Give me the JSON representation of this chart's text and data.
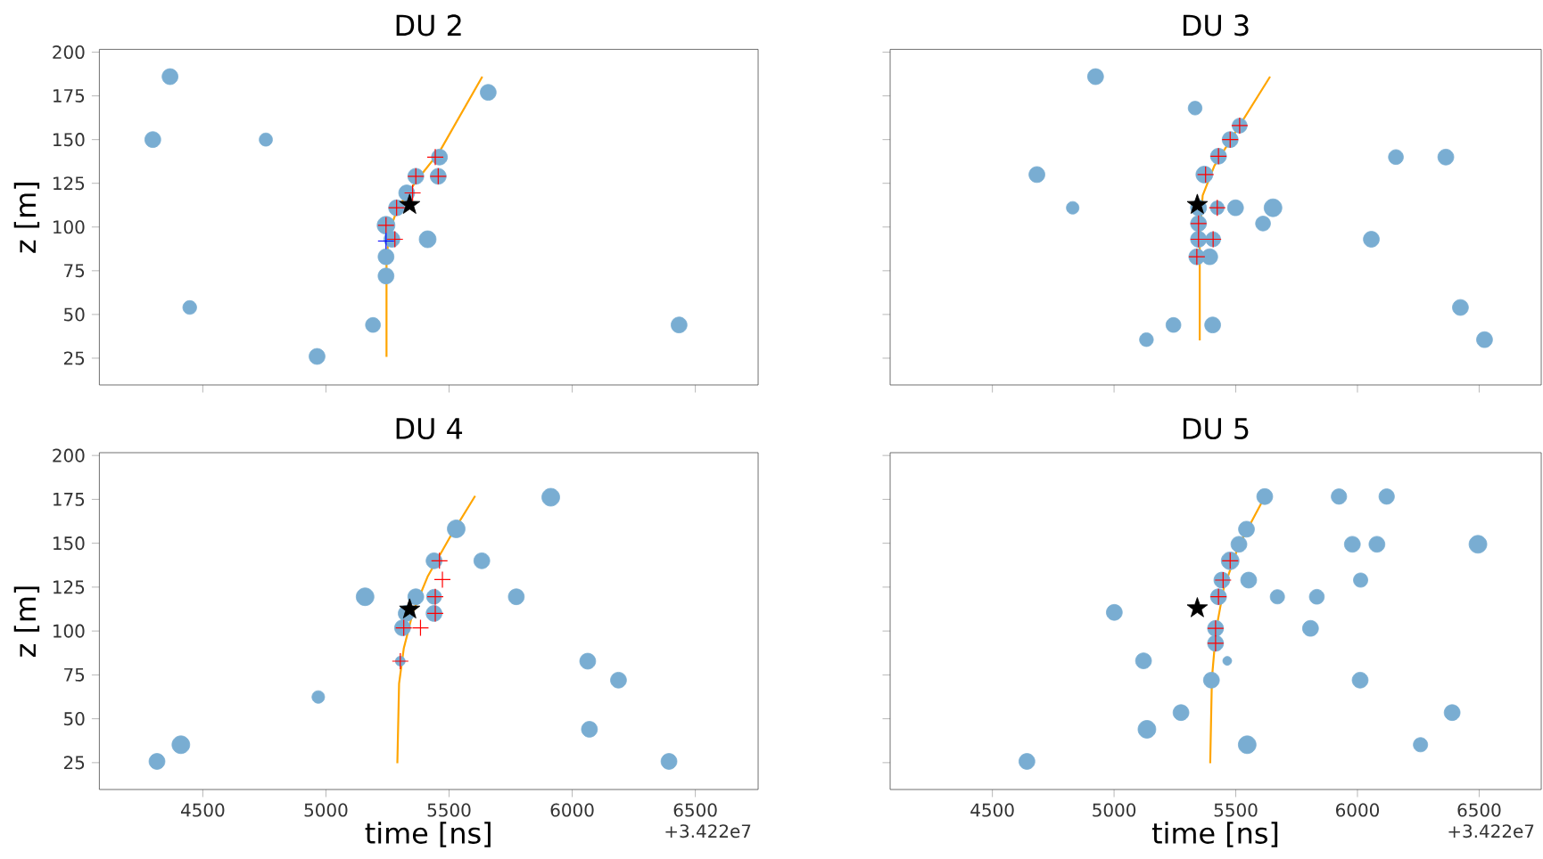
{
  "chart_data": [
    {
      "type": "scatter",
      "title": "DU 2",
      "ylabel": "z [m]",
      "xlim": [
        4080,
        6755
      ],
      "ylim": [
        9.7,
        201.6
      ],
      "xticks": [
        4500,
        5000,
        5500,
        6000,
        6500
      ],
      "yticks": [
        25,
        50,
        75,
        100,
        125,
        150,
        175,
        200
      ],
      "tick_labels": "y",
      "series": [
        {
          "type": "bubble",
          "color": "#79add2",
          "marker": "circle",
          "x": [
            4367,
            4297,
            4756,
            4447,
            4964,
            5191,
            6434,
            5659,
            5244,
            5244,
            5413,
            5244,
            5268,
            5287,
            5328,
            5365,
            5456,
            5461
          ],
          "values": [
            186,
            150,
            150,
            54,
            26,
            44,
            44,
            177,
            72,
            83,
            93,
            101,
            93,
            111,
            119.5,
            129,
            129,
            140
          ],
          "sizes": [
            0.8,
            0.8,
            0.55,
            0.6,
            0.8,
            0.7,
            0.8,
            0.8,
            0.8,
            0.8,
            0.9,
            1,
            0.8,
            0.8,
            0.8,
            0.8,
            0.8,
            0.8
          ]
        },
        {
          "color": "#ff0000",
          "marker": "cross",
          "x": [
            5244,
            5280,
            5287,
            5352,
            5365,
            5456,
            5444
          ],
          "values": [
            101,
            93,
            111,
            119.5,
            129,
            129,
            140
          ]
        },
        {
          "type": "line",
          "color": "#ffa500",
          "x": [
            5246,
            5246,
            5256,
            5292,
            5365,
            5461,
            5635
          ],
          "values": [
            25.7,
            80,
            97,
            111,
            126,
            143,
            186
          ]
        },
        {
          "color": "#000000",
          "marker": "star",
          "x": [
            5340
          ],
          "values": [
            112.7
          ]
        },
        {
          "color": "#0000ff",
          "marker": "cross",
          "x": [
            5244
          ],
          "values": [
            92
          ]
        }
      ]
    },
    {
      "type": "scatter",
      "title": "DU 3",
      "xlim": [
        4080,
        6755
      ],
      "ylim": [
        9.7,
        201.6
      ],
      "xticks": [
        4500,
        5000,
        5500,
        6000,
        6500
      ],
      "yticks": [
        25,
        50,
        75,
        100,
        125,
        150,
        175,
        200
      ],
      "tick_labels": false,
      "series": [
        {
          "type": "bubble",
          "color": "#79add2",
          "marker": "circle",
          "x": [
            4924,
            5333,
            4683,
            4830,
            5133,
            5244,
            5405,
            6158,
            6363,
            6423,
            6522,
            6057,
            5612,
            5653,
            5499,
            5424,
            5347,
            5347,
            5347,
            5407,
            5340,
            5393,
            5371,
            5429,
            5477,
            5516
          ],
          "values": [
            186,
            168,
            130,
            111,
            35.6,
            44,
            44,
            140,
            140,
            54,
            35.6,
            93,
            102,
            111,
            111,
            111,
            111,
            102,
            93,
            93,
            83,
            83,
            130,
            140.5,
            150,
            158
          ],
          "sizes": [
            0.8,
            0.6,
            0.8,
            0.5,
            0.6,
            0.7,
            0.8,
            0.7,
            0.8,
            0.8,
            0.8,
            0.8,
            0.7,
            1,
            0.8,
            0.6,
            0.8,
            0.8,
            0.8,
            0.7,
            0.8,
            0.8,
            0.9,
            0.8,
            0.8,
            0.7
          ]
        },
        {
          "color": "#ff0000",
          "marker": "cross",
          "x": [
            5347,
            5347,
            5407,
            5340,
            5424,
            5376,
            5429,
            5477,
            5516
          ],
          "values": [
            102,
            93,
            93,
            83,
            111,
            130,
            140.5,
            150,
            158
          ]
        },
        {
          "type": "line",
          "color": "#ffa500",
          "x": [
            5352,
            5352,
            5364,
            5412,
            5641
          ],
          "values": [
            35.2,
            94,
            118,
            135,
            186
          ]
        },
        {
          "color": "#000000",
          "marker": "star",
          "x": [
            5342
          ],
          "values": [
            112.7
          ]
        }
      ]
    },
    {
      "type": "scatter",
      "title": "DU 4",
      "xlabel": "time [ns]",
      "ylabel": "z [m]",
      "annotations": [
        "+3.422e7"
      ],
      "xlim": [
        4080,
        6755
      ],
      "ylim": [
        9.7,
        201.6
      ],
      "xticks": [
        4500,
        5000,
        5500,
        6000,
        6500
      ],
      "yticks": [
        25,
        50,
        75,
        100,
        125,
        150,
        175,
        200
      ],
      "series": [
        {
          "type": "bubble",
          "color": "#79add2",
          "marker": "circle",
          "x": [
            4314,
            4411,
            4969,
            5159,
            5913,
            5529,
            5633,
            5773,
            6063,
            6188,
            6070,
            6393,
            5365,
            5311,
            5439,
            5439,
            5439,
            5326,
            5302
          ],
          "values": [
            25.7,
            35.2,
            62.4,
            119.5,
            176.2,
            158.2,
            140,
            119.5,
            82.8,
            72,
            44,
            25.7,
            119.5,
            101.8,
            140,
            119.5,
            110,
            110,
            82.8
          ],
          "sizes": [
            0.8,
            1,
            0.5,
            1,
            1,
            1,
            0.8,
            0.8,
            0.8,
            0.8,
            0.8,
            0.8,
            0.8,
            0.8,
            0.8,
            0.7,
            0.8,
            0.8,
            0.3
          ]
        },
        {
          "color": "#ff0000",
          "marker": "cross",
          "x": [
            5302,
            5316,
            5384,
            5461,
            5473,
            5444,
            5444
          ],
          "values": [
            82.8,
            101.8,
            101.8,
            140,
            129.3,
            119.5,
            110
          ]
        },
        {
          "type": "line",
          "color": "#ffa500",
          "x": [
            5290,
            5297,
            5316,
            5353,
            5413,
            5509,
            5606
          ],
          "values": [
            24.7,
            70,
            90,
            110.6,
            131,
            154.8,
            177
          ]
        },
        {
          "color": "#000000",
          "marker": "star",
          "x": [
            5340
          ],
          "values": [
            112.3
          ]
        }
      ]
    },
    {
      "type": "scatter",
      "title": "DU 5",
      "xlabel": "time [ns]",
      "annotations": [
        "+3.422e7"
      ],
      "xlim": [
        4080,
        6755
      ],
      "ylim": [
        9.7,
        201.6
      ],
      "xticks": [
        4500,
        5000,
        5500,
        6000,
        6500
      ],
      "yticks": [
        25,
        50,
        75,
        100,
        125,
        150,
        175,
        200
      ],
      "tick_labels": "x",
      "series": [
        {
          "type": "bubble",
          "color": "#79add2",
          "marker": "circle",
          "x": [
            4642,
            5001,
            5121,
            5135,
            5275,
            5547,
            5400,
            5465,
            5417,
            5417,
            5429,
            5443,
            5477,
            5513,
            5544,
            5619,
            5553,
            5671,
            5833,
            5807,
            5924,
            6120,
            5979,
            6080,
            6013,
            6011,
            6389,
            6259,
            6495
          ],
          "values": [
            25.7,
            110.6,
            83,
            44,
            53.5,
            35.2,
            72,
            83,
            93,
            101.5,
            119.5,
            129,
            140,
            149.4,
            158,
            176.6,
            129,
            119.5,
            119.5,
            101.5,
            176.6,
            176.6,
            149.4,
            149.4,
            129,
            72,
            53.5,
            35.2,
            149.4
          ],
          "sizes": [
            0.8,
            0.8,
            0.8,
            1,
            0.8,
            1,
            0.8,
            0.25,
            0.8,
            0.8,
            0.8,
            0.8,
            1,
            0.8,
            0.8,
            0.8,
            0.8,
            0.65,
            0.7,
            0.8,
            0.75,
            0.75,
            0.8,
            0.8,
            0.65,
            0.8,
            0.8,
            0.65,
            1
          ]
        },
        {
          "color": "#ff0000",
          "marker": "cross",
          "x": [
            5417,
            5417,
            5429,
            5448,
            5477
          ],
          "values": [
            93,
            101.5,
            119.5,
            129,
            140
          ]
        },
        {
          "type": "line",
          "color": "#ffa500",
          "x": [
            5395,
            5402,
            5419,
            5450,
            5510,
            5621
          ],
          "values": [
            24.7,
            73,
            100.4,
            124,
            148,
            177
          ]
        },
        {
          "color": "#000000",
          "marker": "star",
          "x": [
            5342
          ],
          "values": [
            113
          ]
        }
      ]
    }
  ]
}
